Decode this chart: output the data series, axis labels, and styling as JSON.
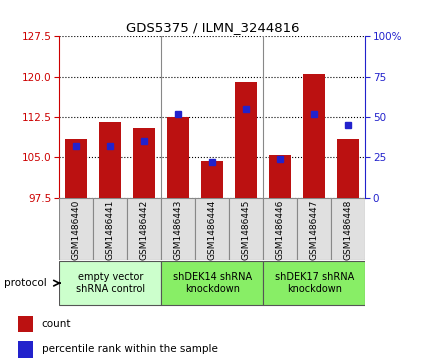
{
  "title": "GDS5375 / ILMN_3244816",
  "samples": [
    "GSM1486440",
    "GSM1486441",
    "GSM1486442",
    "GSM1486443",
    "GSM1486444",
    "GSM1486445",
    "GSM1486446",
    "GSM1486447",
    "GSM1486448"
  ],
  "counts": [
    108.5,
    111.5,
    110.5,
    112.5,
    104.3,
    119.0,
    105.5,
    120.5,
    108.5
  ],
  "percentiles": [
    32,
    32,
    35,
    52,
    22,
    55,
    24,
    52,
    45
  ],
  "ylim_left": [
    97.5,
    127.5
  ],
  "ylim_right": [
    0,
    100
  ],
  "yticks_left": [
    97.5,
    105,
    112.5,
    120,
    127.5
  ],
  "yticks_right": [
    0,
    25,
    50,
    75,
    100
  ],
  "bar_color": "#bb1111",
  "dot_color": "#2222cc",
  "bar_bottom": 97.5,
  "groups": [
    {
      "label": "empty vector\nshRNA control",
      "start": 0,
      "end": 3,
      "color": "#ccffcc"
    },
    {
      "label": "shDEK14 shRNA\nknockdown",
      "start": 3,
      "end": 6,
      "color": "#88ee66"
    },
    {
      "label": "shDEK17 shRNA\nknockdown",
      "start": 6,
      "end": 9,
      "color": "#88ee66"
    }
  ],
  "legend_count_label": "count",
  "legend_percentile_label": "percentile rank within the sample",
  "protocol_label": "protocol",
  "bg_color": "#ffffff",
  "plot_bg_color": "#ffffff",
  "left_axis_color": "#cc0000",
  "right_axis_color": "#2222cc",
  "cell_bg_color": "#e0e0e0",
  "cell_border_color": "#888888"
}
